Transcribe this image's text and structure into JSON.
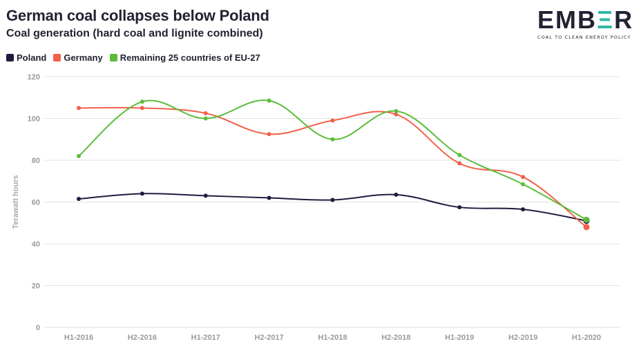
{
  "header": {
    "title": "German coal collapses below Poland",
    "subtitle": "Coal generation (hard coal and lignite combined)"
  },
  "logo": {
    "word_part1": "EMB",
    "word_mark": "Ξ",
    "word_part2": "R",
    "tagline": "COAL TO CLEAN ENERGY POLICY"
  },
  "colors": {
    "poland": "#1f1b3d",
    "germany": "#f2604a",
    "eu": "#5bbc3a",
    "grid": "#e2e2e2"
  },
  "chart_data": {
    "type": "line",
    "title": "German coal collapses below Poland",
    "subtitle": "Coal generation (hard coal and lignite combined)",
    "xlabel": "",
    "ylabel": "Terawatt hours",
    "ylim": [
      0,
      120
    ],
    "yticks": [
      0,
      20,
      40,
      60,
      80,
      100,
      120
    ],
    "grid": true,
    "legend_position": "top-left",
    "categories": [
      "H1-2016",
      "H2-2016",
      "H1-2017",
      "H2-2017",
      "H1-2018",
      "H2-2018",
      "H1-2019",
      "H2-2019",
      "H1-2020"
    ],
    "series": [
      {
        "name": "Poland",
        "color": "#1f1b3d",
        "values": [
          61.5,
          64,
          63,
          62,
          61,
          63.5,
          57.5,
          56.5,
          51
        ]
      },
      {
        "name": "Germany",
        "color": "#f2604a",
        "values": [
          105,
          105,
          102.5,
          92.5,
          99,
          102,
          78.5,
          72,
          48
        ]
      },
      {
        "name": "Remaining 25 countries of EU-27",
        "color": "#5bbc3a",
        "values": [
          82,
          108,
          100,
          108.5,
          90,
          103.5,
          82.5,
          68.5,
          51.5
        ]
      }
    ]
  }
}
